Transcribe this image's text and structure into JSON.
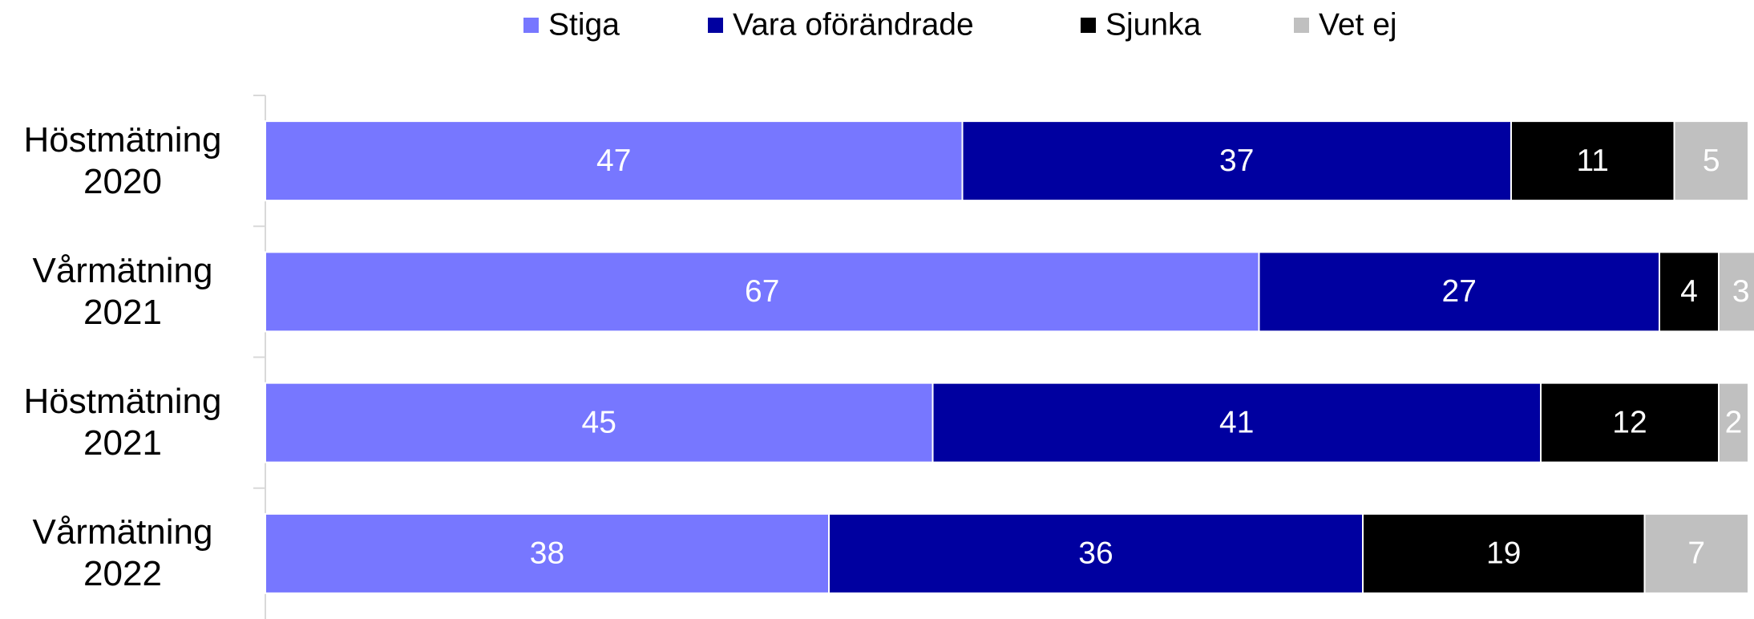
{
  "chart_data": {
    "type": "stacked_bar_horizontal",
    "categories": [
      "Höstmätning 2020",
      "Vårmätning 2021",
      "Höstmätning 2021",
      "Vårmätning 2022"
    ],
    "series": [
      {
        "name": "Stiga",
        "color": "#7777ff",
        "values": [
          47,
          67,
          45,
          38
        ]
      },
      {
        "name": "Vara oförändrade",
        "color": "#0000a0",
        "values": [
          37,
          27,
          41,
          36
        ]
      },
      {
        "name": "Sjunka",
        "color": "#000000",
        "values": [
          11,
          4,
          12,
          19
        ]
      },
      {
        "name": "Vet ej",
        "color": "#c0c0c0",
        "values": [
          5,
          3,
          2,
          7
        ]
      }
    ],
    "xlim": [
      0,
      100
    ],
    "legend": "top"
  }
}
